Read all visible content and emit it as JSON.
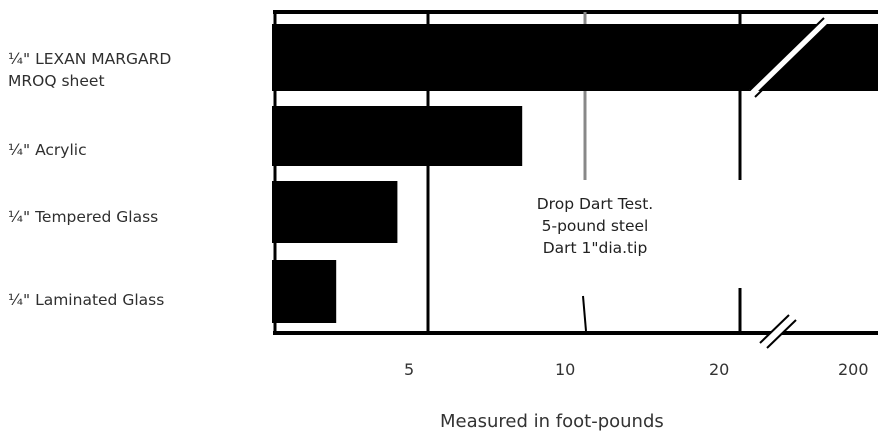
{
  "chart_data": {
    "type": "bar",
    "orientation": "horizontal",
    "categories": [
      "¼\" LEXAN MARGARD\nMROQ sheet",
      "¼\" Acrylic",
      "¼\" Tempered Glass",
      "¼\" Laminated Glass"
    ],
    "values": [
      200,
      8,
      4,
      2
    ],
    "bar_color": "#000000",
    "xticks": [
      "5",
      "10",
      "20",
      "200"
    ],
    "xlabel": "Measured in foot-pounds",
    "axis_break_after": "20",
    "annotation": [
      "Drop Dart Test.",
      "5-pound steel",
      "Dart 1\"dia.tip"
    ],
    "grid": true
  }
}
